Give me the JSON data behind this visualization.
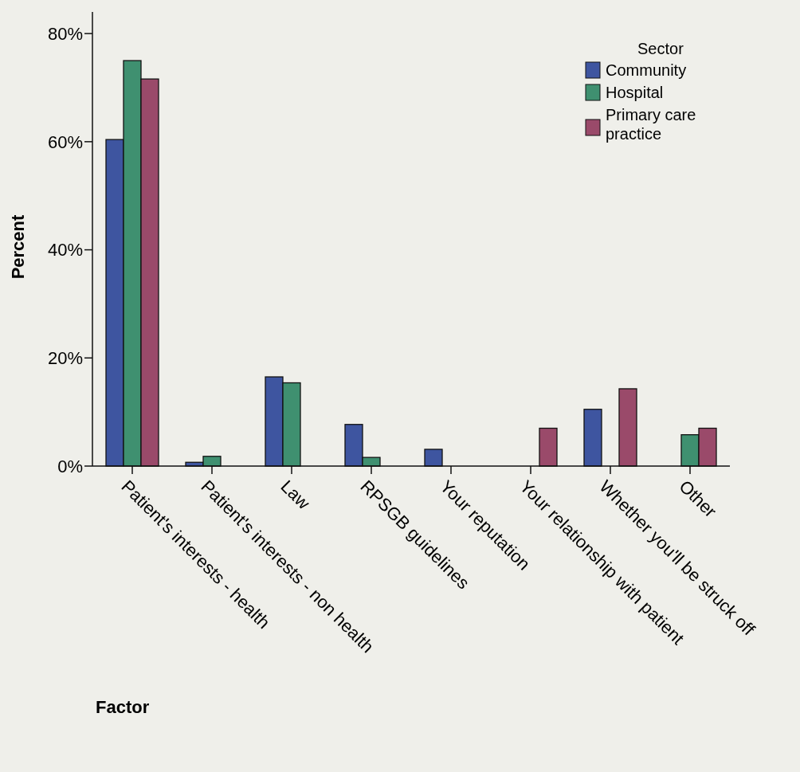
{
  "chart_data": {
    "type": "bar",
    "xlabel": "Factor",
    "ylabel": "Percent",
    "legend_title": "Sector",
    "legend": "top right",
    "categories": [
      "Patient's interests - health",
      "Patient's interests - non health",
      "Law",
      "RPSGB guidelines",
      "Your reputation",
      "Your relationship with patient",
      "Whether you'll be struck off",
      "Other"
    ],
    "series": [
      {
        "name": "Community",
        "color": "#3e55a0",
        "values": [
          60.4,
          0.7,
          16.5,
          7.7,
          3.1,
          null,
          10.5,
          null
        ]
      },
      {
        "name": "Hospital",
        "color": "#3f9070",
        "values": [
          75.0,
          1.8,
          15.4,
          1.6,
          null,
          null,
          null,
          5.8
        ]
      },
      {
        "name": "Primary care practice",
        "color": "#9a4a6a",
        "values": [
          71.6,
          null,
          null,
          null,
          null,
          7.0,
          14.3,
          7.0
        ]
      }
    ],
    "ylim": [
      0,
      84
    ],
    "yticks": [
      {
        "value": 0,
        "label": "0%"
      },
      {
        "value": 20,
        "label": "20%"
      },
      {
        "value": 40,
        "label": "40%"
      },
      {
        "value": 60,
        "label": "60%"
      },
      {
        "value": 80,
        "label": "80%"
      }
    ],
    "grid": false
  }
}
